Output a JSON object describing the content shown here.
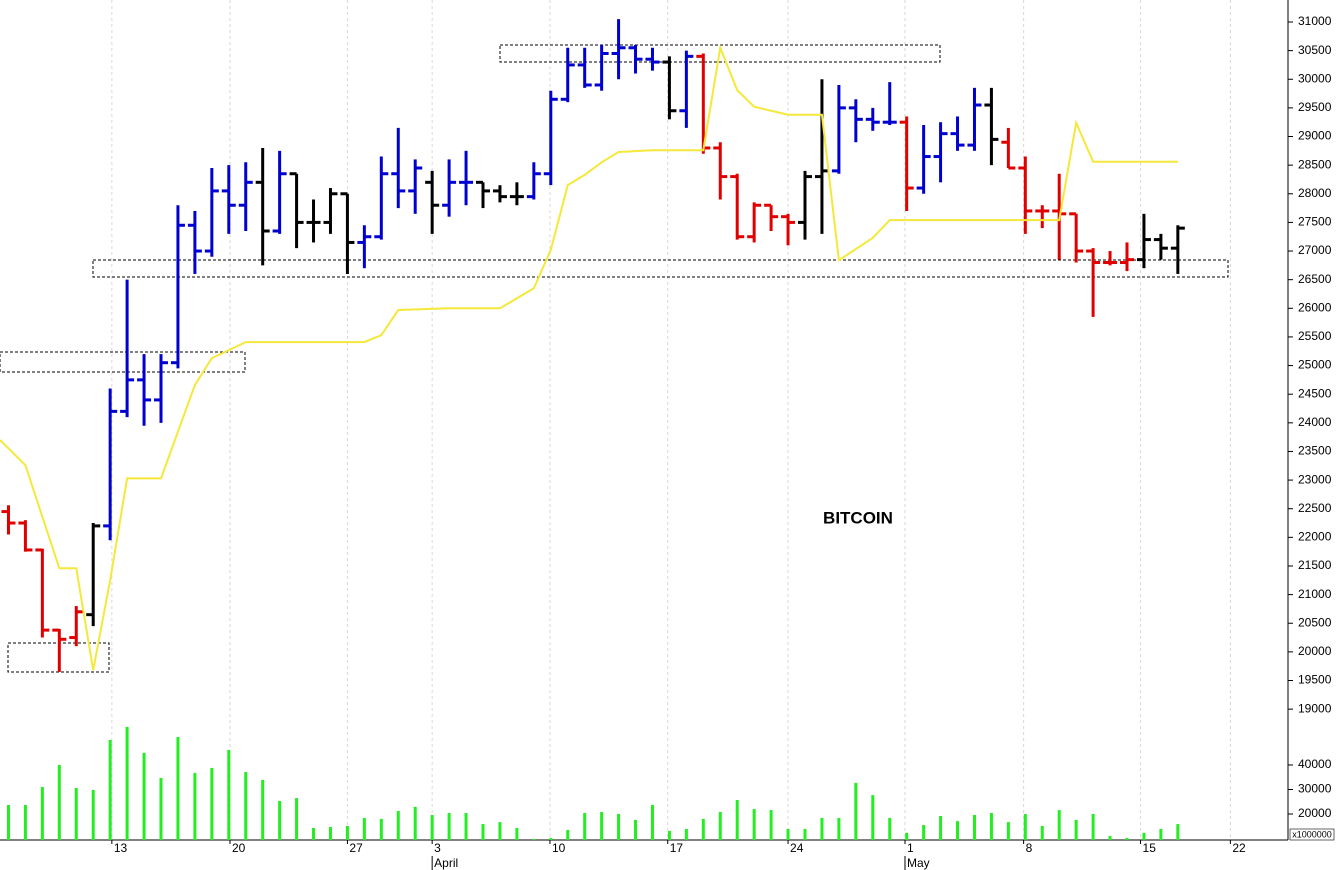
{
  "chart_data": {
    "type": "ohlc",
    "title": "BITCOIN",
    "xlim": [
      -0.5,
      75.5
    ],
    "ylim": [
      18950,
      31384
    ],
    "yticks": [
      19000,
      19500,
      20000,
      20500,
      21000,
      21500,
      22000,
      22500,
      23000,
      23500,
      24000,
      24500,
      25000,
      25500,
      26000,
      26500,
      27000,
      27500,
      28000,
      28500,
      29000,
      29500,
      30000,
      30500,
      31000
    ],
    "xticks": [
      {
        "value": 6.1,
        "label": "13"
      },
      {
        "value": 13.07,
        "label": "20"
      },
      {
        "value": 20.0,
        "label": "27"
      },
      {
        "value": 25.0,
        "label": "3"
      },
      {
        "value": 31.95,
        "label": "10"
      },
      {
        "value": 38.9,
        "label": "17"
      },
      {
        "value": 46.0,
        "label": "24"
      },
      {
        "value": 52.9,
        "label": "1"
      },
      {
        "value": 59.9,
        "label": "8"
      },
      {
        "value": 66.8,
        "label": "15"
      },
      {
        "value": 72.1,
        "label": "22"
      }
    ],
    "months": [
      {
        "value": 25.0,
        "label": "April"
      },
      {
        "value": 52.9,
        "label": "May"
      }
    ],
    "grid": true,
    "open": [
      22450,
      22250,
      21780,
      20380,
      20250,
      20650,
      22200,
      24200,
      24750,
      24400,
      25050,
      27450,
      27000,
      28050,
      27800,
      28200,
      27350,
      28350,
      27500,
      27500,
      28000,
      27150,
      27250,
      28350,
      28050,
      28200,
      27800,
      28200,
      28200,
      28050,
      27950,
      27950,
      28350,
      29650,
      30250,
      29900,
      30450,
      30550,
      30350,
      30300,
      29450,
      30400,
      28800,
      28300,
      27250,
      27800,
      27600,
      27500,
      28300,
      28400,
      29500,
      29300,
      29250,
      29250,
      28100,
      28650,
      29050,
      28850,
      29550,
      28900,
      28450,
      27700,
      27700,
      27650,
      27000,
      26800,
      26800,
      26850,
      27200,
      27050
    ],
    "high": [
      22560,
      22300,
      21800,
      20400,
      20800,
      22250,
      24600,
      26500,
      25200,
      25200,
      27800,
      27700,
      28450,
      28500,
      28550,
      28800,
      28750,
      28350,
      27900,
      28100,
      28000,
      27450,
      28650,
      29150,
      28600,
      28400,
      28600,
      28750,
      28200,
      28150,
      28200,
      28550,
      29800,
      30550,
      30550,
      30600,
      31050,
      30600,
      30550,
      30400,
      30500,
      30450,
      28900,
      28350,
      27850,
      27800,
      27650,
      28400,
      30000,
      29900,
      29650,
      29500,
      29950,
      29350,
      29200,
      29250,
      29350,
      29850,
      29850,
      29150,
      28650,
      27800,
      28350,
      27650,
      27050,
      27000,
      27150,
      27650,
      27300,
      27450
    ],
    "low": [
      22050,
      21750,
      20250,
      19650,
      20100,
      20450,
      21950,
      24100,
      23950,
      24000,
      24950,
      26600,
      26900,
      27300,
      27350,
      26750,
      27300,
      27050,
      27150,
      27300,
      26600,
      26700,
      27200,
      27750,
      27650,
      27300,
      27600,
      27800,
      27750,
      27850,
      27800,
      27900,
      28150,
      29600,
      29850,
      29800,
      30000,
      30100,
      30150,
      29300,
      29150,
      28700,
      27900,
      27200,
      27150,
      27350,
      27100,
      27200,
      27300,
      28350,
      28900,
      29100,
      29200,
      27700,
      28000,
      28200,
      28750,
      28750,
      28500,
      28450,
      27300,
      27400,
      26850,
      26800,
      25850,
      26750,
      26650,
      26700,
      26850,
      26600
    ],
    "close": [
      22250,
      21780,
      20380,
      20220,
      20700,
      22200,
      24200,
      24750,
      24400,
      25050,
      27450,
      27000,
      28050,
      27800,
      28200,
      27350,
      28350,
      27500,
      27500,
      28000,
      27150,
      27250,
      28350,
      28050,
      28450,
      27800,
      28200,
      28200,
      28050,
      27950,
      27950,
      28350,
      29650,
      30250,
      29900,
      30450,
      30550,
      30350,
      30300,
      29450,
      30400,
      28800,
      28300,
      27250,
      27800,
      27600,
      27500,
      28300,
      28400,
      29500,
      29300,
      29250,
      29250,
      28100,
      28650,
      29050,
      28850,
      29550,
      28950,
      28450,
      27700,
      27700,
      27650,
      27000,
      26800,
      26800,
      26850,
      27200,
      27050,
      27400
    ],
    "colors": [
      "#e00000",
      "#e00000",
      "#e00000",
      "#e00000",
      "#e00000",
      "#000000",
      "#0000d0",
      "#0000d0",
      "#0000d0",
      "#0000d0",
      "#0000d0",
      "#0000d0",
      "#0000d0",
      "#0000d0",
      "#0000d0",
      "#000000",
      "#0000d0",
      "#000000",
      "#000000",
      "#000000",
      "#000000",
      "#0000d0",
      "#0000d0",
      "#0000d0",
      "#0000d0",
      "#000000",
      "#0000d0",
      "#0000d0",
      "#000000",
      "#000000",
      "#000000",
      "#0000d0",
      "#0000d0",
      "#0000d0",
      "#0000d0",
      "#0000d0",
      "#0000d0",
      "#0000d0",
      "#0000d0",
      "#000000",
      "#0000d0",
      "#e00000",
      "#e00000",
      "#e00000",
      "#e00000",
      "#e00000",
      "#e00000",
      "#000000",
      "#000000",
      "#0000d0",
      "#0000d0",
      "#0000d0",
      "#0000d0",
      "#e00000",
      "#0000d0",
      "#0000d0",
      "#0000d0",
      "#0000d0",
      "#000000",
      "#e00000",
      "#e00000",
      "#e00000",
      "#e00000",
      "#e00000",
      "#e00000",
      "#e00000",
      "#e00000",
      "#000000",
      "#000000",
      "#000000"
    ],
    "overlay": {
      "type": "line",
      "color": "#f5e83a",
      "x": [
        -0.5,
        1,
        3,
        4,
        5,
        6,
        7,
        9,
        11,
        12,
        14,
        21,
        22,
        23,
        26,
        29,
        31,
        32,
        33,
        34,
        35,
        36,
        38,
        41,
        42,
        43,
        44,
        46,
        48,
        49,
        51,
        52,
        62,
        63,
        64,
        69
      ],
      "values": [
        23700,
        23260,
        21460,
        21460,
        19680,
        21250,
        23030,
        23030,
        24660,
        25130,
        25410,
        25410,
        25530,
        25970,
        26000,
        26000,
        26350,
        27020,
        28150,
        28330,
        28550,
        28730,
        28760,
        28760,
        30550,
        29810,
        29520,
        29380,
        29380,
        26840,
        27230,
        27540,
        27540,
        29240,
        28560,
        28560
      ]
    },
    "volume": {
      "type": "bar",
      "color": "#22ee22",
      "unit_label": "x1000000",
      "ylim": [
        9400,
        61600
      ],
      "yticks": [
        20000,
        30000,
        40000
      ],
      "values": [
        23670,
        23670,
        31020,
        40000,
        30610,
        29800,
        50200,
        55500,
        44900,
        34700,
        51400,
        36700,
        38800,
        46100,
        37100,
        33900,
        25300,
        26500,
        14300,
        14700,
        15100,
        18400,
        18000,
        21200,
        22900,
        19600,
        20400,
        20400,
        15900,
        16700,
        14300,
        9800,
        10200,
        13500,
        20400,
        20800,
        20000,
        17600,
        23700,
        13100,
        13900,
        18000,
        20800,
        25700,
        22000,
        21600,
        13900,
        13900,
        18400,
        18400,
        32700,
        27700,
        18400,
        12300,
        15500,
        19200,
        17100,
        19600,
        20400,
        16700,
        20000,
        15100,
        21600,
        17600,
        20000,
        11000,
        10200,
        12300,
        13900,
        15900
      ]
    }
  }
}
